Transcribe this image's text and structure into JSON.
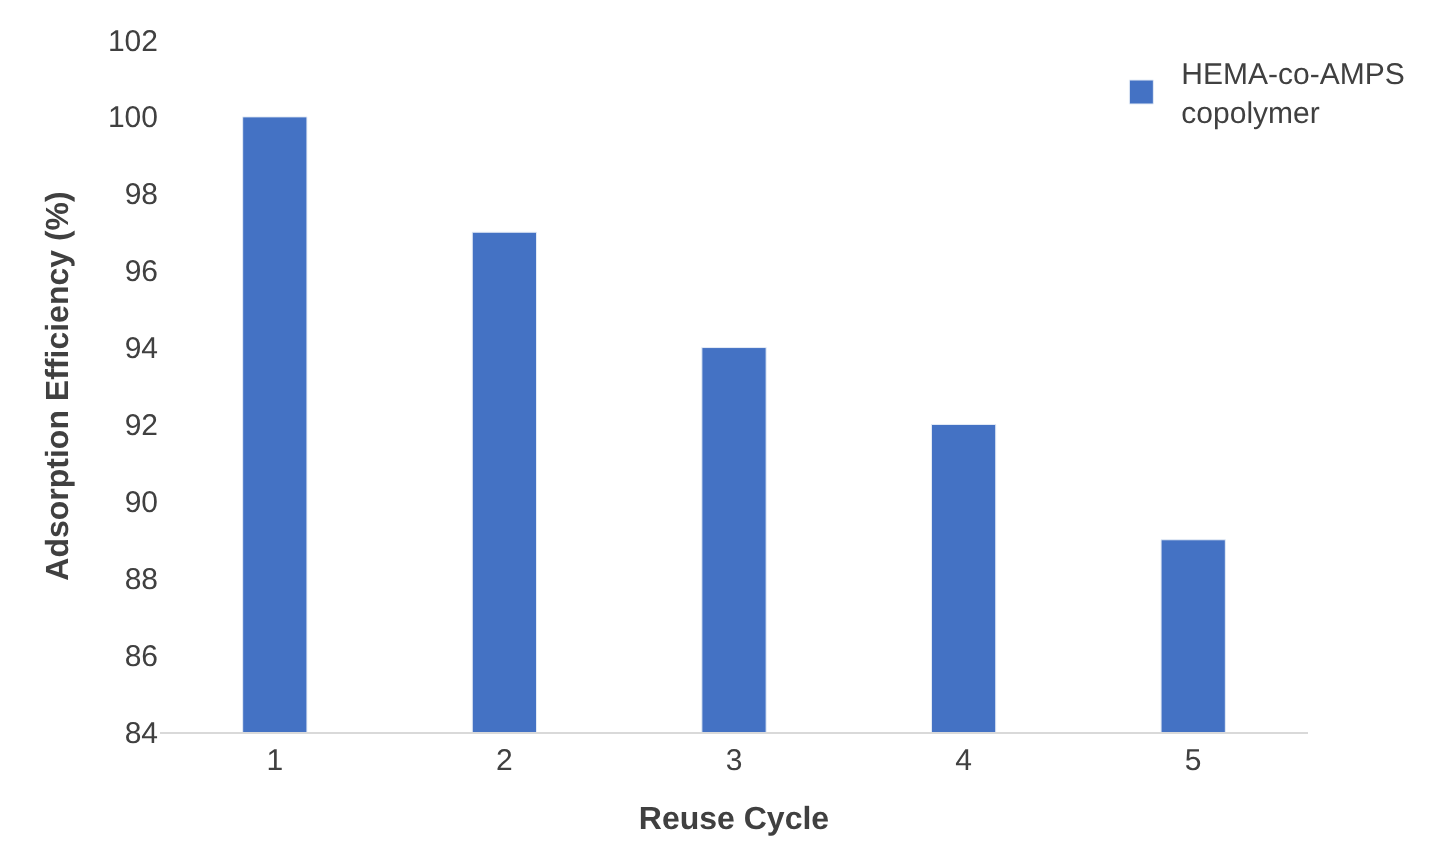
{
  "chart_data": {
    "type": "bar",
    "xlabel": "Reuse Cycle",
    "ylabel": "Adsorption Efficiency (%)",
    "categories": [
      "1",
      "2",
      "3",
      "4",
      "5"
    ],
    "series": [
      {
        "name": "HEMA-co-AMPS copolymer",
        "color": "#4472c4",
        "values": [
          100,
          97,
          94,
          92,
          89
        ]
      }
    ],
    "ylim": [
      84,
      102
    ],
    "yticks": [
      84,
      86,
      88,
      90,
      92,
      94,
      96,
      98,
      100,
      102
    ],
    "grid": false,
    "legend": "top right"
  }
}
